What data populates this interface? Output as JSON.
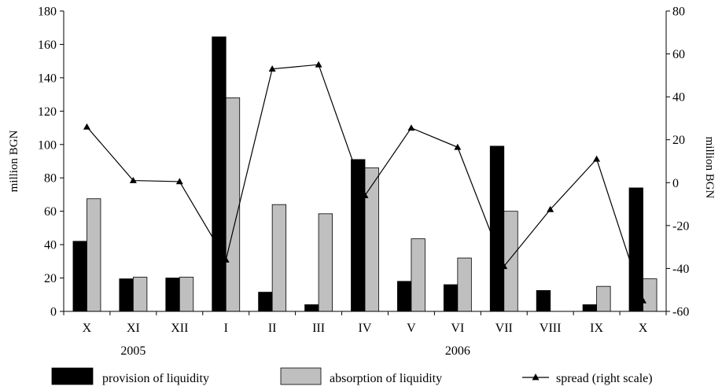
{
  "chart_data": {
    "type": "bar",
    "categories": [
      "X",
      "XI",
      "XII",
      "I",
      "II",
      "III",
      "IV",
      "V",
      "VI",
      "VII",
      "VIII",
      "IX",
      "X"
    ],
    "year_labels": [
      {
        "text": "2005",
        "center_index": 1
      },
      {
        "text": "2006",
        "center_index": 8
      }
    ],
    "series": [
      {
        "name": "provision of liquidity",
        "type": "bar",
        "axis": "left",
        "color": "#000000",
        "values": [
          42,
          19.5,
          20,
          164.5,
          11.5,
          4,
          91,
          18,
          16,
          99,
          12.5,
          4,
          74
        ]
      },
      {
        "name": "absorption of liquidity",
        "type": "bar",
        "axis": "left",
        "color": "#bfbfbf",
        "values": [
          67.5,
          20.5,
          20.5,
          128,
          64,
          58.5,
          86,
          43.5,
          32,
          60,
          0,
          15,
          19.5
        ]
      },
      {
        "name": "spread (right scale)",
        "type": "line",
        "axis": "right",
        "color": "#000000",
        "marker": "triangle",
        "values": [
          26,
          1,
          0.5,
          -36,
          53,
          55,
          -6,
          25.5,
          16.5,
          -39,
          -12.5,
          11,
          -55
        ]
      }
    ],
    "left_axis": {
      "label": "million BGN",
      "min": 0,
      "max": 180,
      "ticks": [
        0,
        20,
        40,
        60,
        80,
        100,
        120,
        140,
        160,
        180
      ]
    },
    "right_axis": {
      "label": "million BGN",
      "min": -60,
      "max": 80,
      "ticks": [
        -60,
        -40,
        -20,
        0,
        20,
        40,
        60,
        80
      ]
    },
    "grid": false,
    "legend_position": "bottom"
  }
}
